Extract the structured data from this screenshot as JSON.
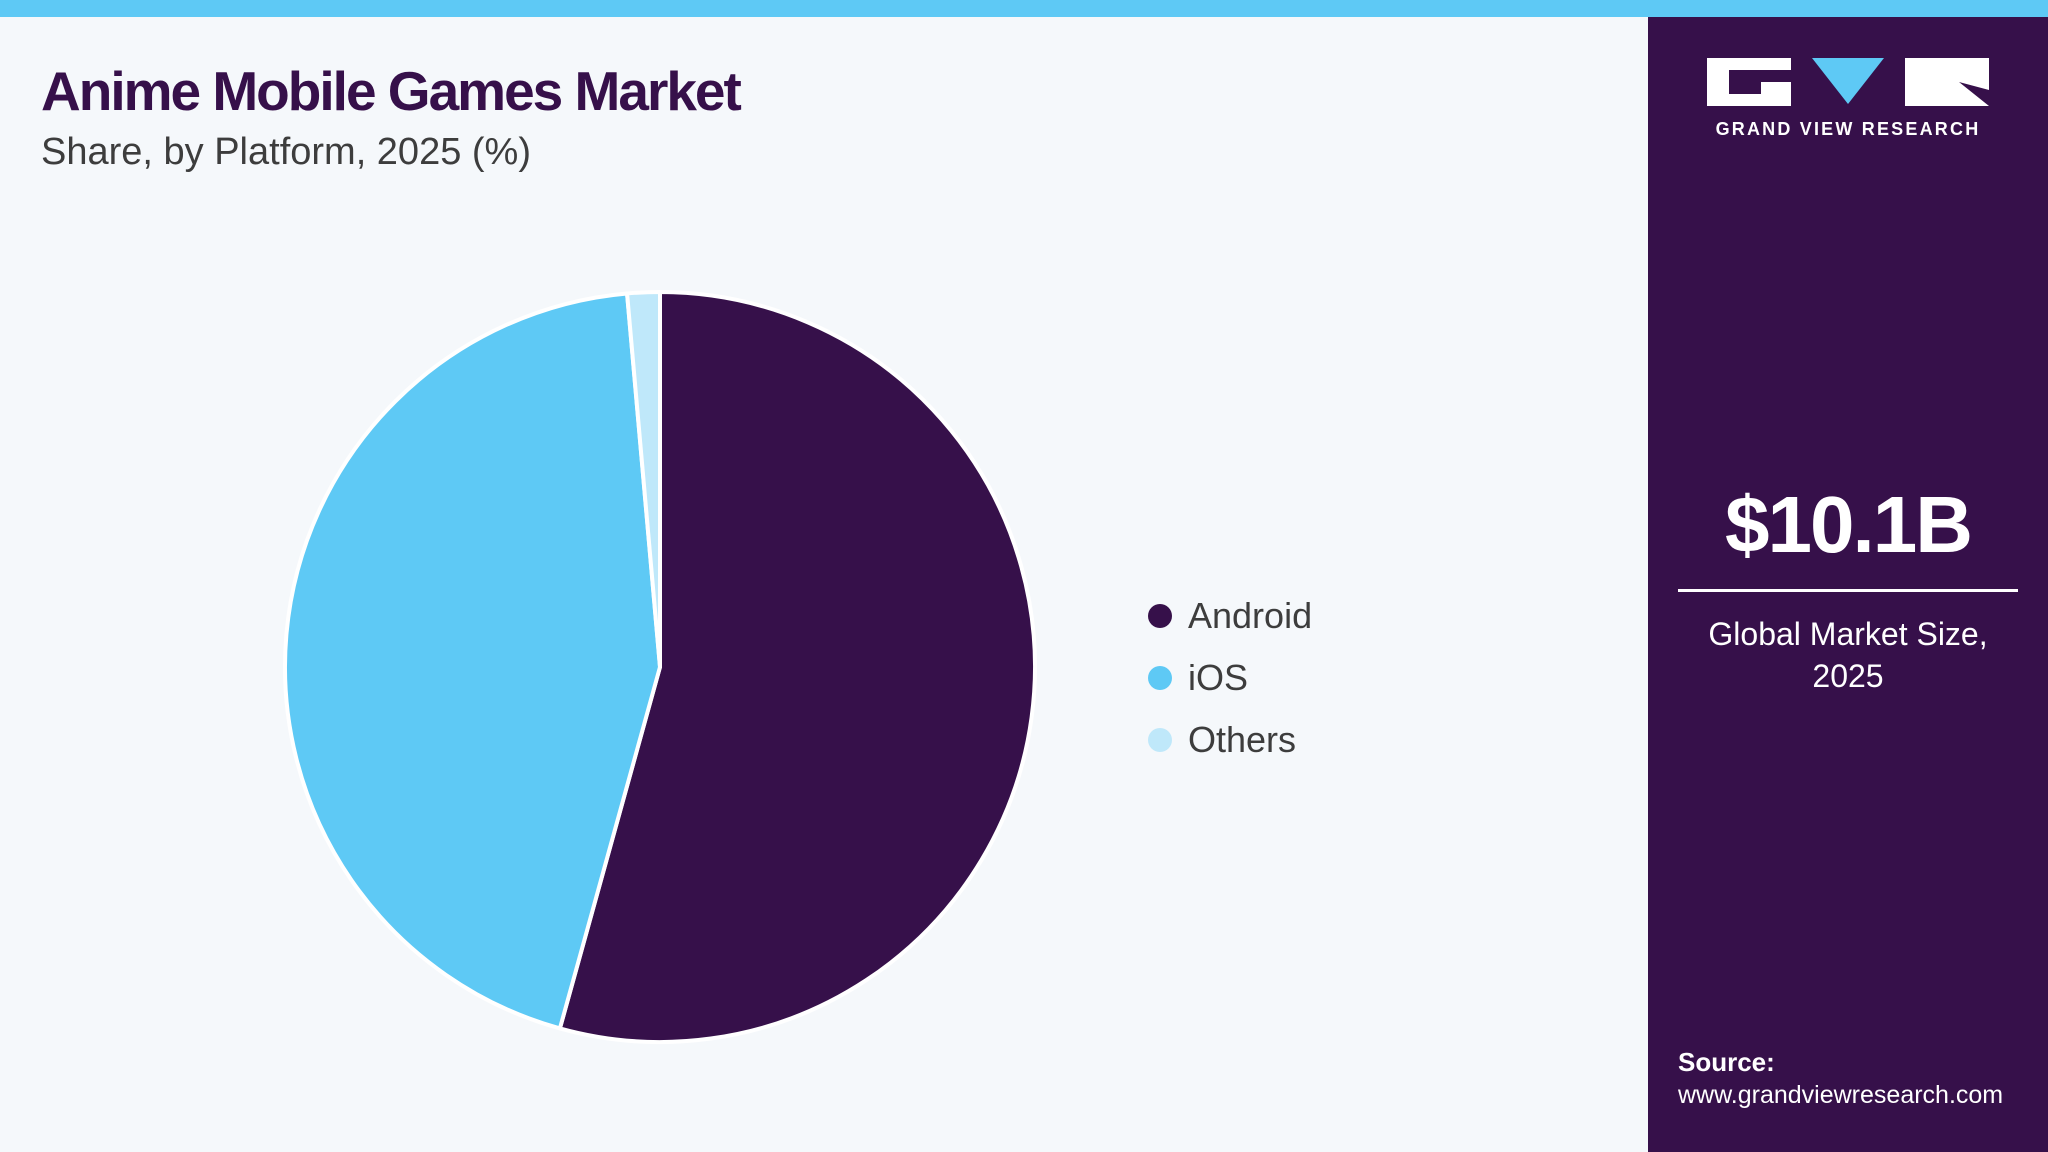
{
  "colors": {
    "accent_bar": "#5ec9f5",
    "panel_bg": "#36104a",
    "page_bg": "#f5f8fb",
    "title": "#36104a"
  },
  "header": {
    "title": "Anime Mobile Games Market",
    "subtitle": "Share, by Platform, 2025 (%)"
  },
  "chart_data": {
    "type": "pie",
    "categories": [
      "Android",
      "iOS",
      "Others"
    ],
    "values": [
      54.3,
      44.3,
      1.4
    ],
    "colors": [
      "#36104a",
      "#5ec9f5",
      "#bfe8fa"
    ],
    "legend_position": "right"
  },
  "side_panel": {
    "logo_text": "GRAND VIEW RESEARCH",
    "market_value": "$10.1B",
    "market_label": "Global Market Size, 2025",
    "source_label": "Source:",
    "source_url": "www.grandviewresearch.com"
  }
}
